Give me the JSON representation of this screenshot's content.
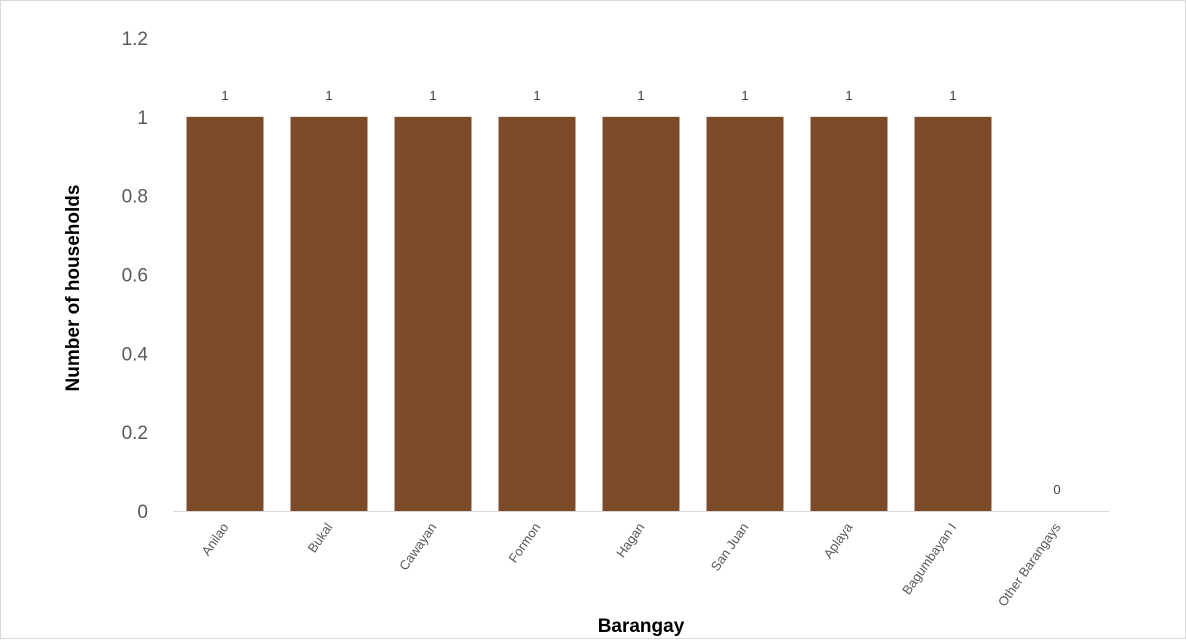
{
  "chart_data": {
    "type": "bar",
    "title": "",
    "xlabel": "Barangay",
    "ylabel": "Number of households",
    "categories": [
      "Anilao",
      "Bukal",
      "Cawayan",
      "Formon",
      "Hagan",
      "San Juan",
      "Aplaya",
      "Bagumbayan I",
      "Other Barangays"
    ],
    "values": [
      1,
      1,
      1,
      1,
      1,
      1,
      1,
      1,
      0
    ],
    "data_labels": [
      "1",
      "1",
      "1",
      "1",
      "1",
      "1",
      "1",
      "1",
      "0"
    ],
    "ylim": [
      0,
      1.2
    ],
    "y_ticks": [
      "0",
      "0.2",
      "0.4",
      "0.6",
      "0.8",
      "1",
      "1.2"
    ],
    "y_tick_values": [
      0,
      0.2,
      0.4,
      0.6,
      0.8,
      1,
      1.2
    ],
    "grid": false,
    "legend": "none",
    "bar_color": "#7b4c27",
    "axis_color": "#d9d9d9"
  }
}
